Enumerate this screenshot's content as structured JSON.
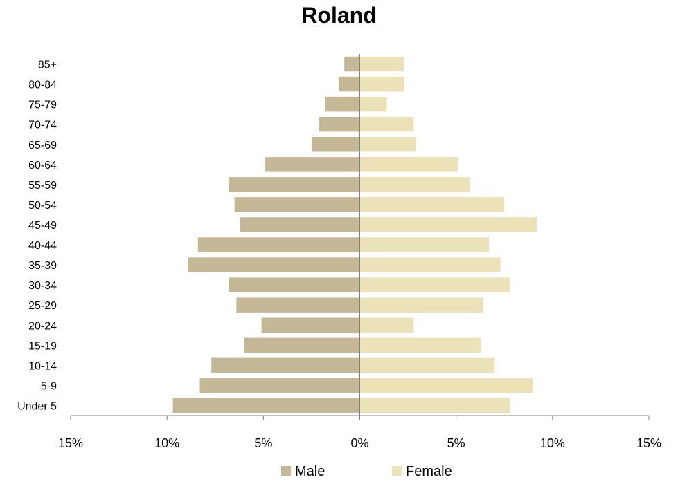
{
  "chart_data": {
    "type": "bar",
    "orientation": "horizontal",
    "title": "Roland",
    "categories": [
      "85+",
      "80-84",
      "75-79",
      "70-74",
      "65-69",
      "60-64",
      "55-59",
      "50-54",
      "45-49",
      "40-44",
      "35-39",
      "30-34",
      "25-29",
      "20-24",
      "15-19",
      "10-14",
      "5-9",
      "Under 5"
    ],
    "series": [
      {
        "name": "Male",
        "color": "#c4b896",
        "values": [
          -0.8,
          -1.1,
          -1.8,
          -2.1,
          -2.5,
          -4.9,
          -6.8,
          -6.5,
          -6.2,
          -8.4,
          -8.9,
          -6.8,
          -6.4,
          -5.1,
          -6.0,
          -7.7,
          -8.3,
          -9.7
        ]
      },
      {
        "name": "Female",
        "color": "#ebe2b8",
        "values": [
          2.3,
          2.3,
          1.4,
          2.8,
          2.9,
          5.1,
          5.7,
          7.5,
          9.2,
          6.7,
          7.3,
          7.8,
          6.4,
          2.8,
          6.3,
          7.0,
          9.0,
          7.8
        ]
      }
    ],
    "xlim": [
      -15,
      15
    ],
    "xticks": [
      -15,
      -10,
      -5,
      0,
      5,
      10,
      15
    ],
    "xtick_labels": [
      "15%",
      "10%",
      "5%",
      "0%",
      "5%",
      "10%",
      "15%"
    ],
    "grid": false,
    "legend_position": "bottom"
  }
}
